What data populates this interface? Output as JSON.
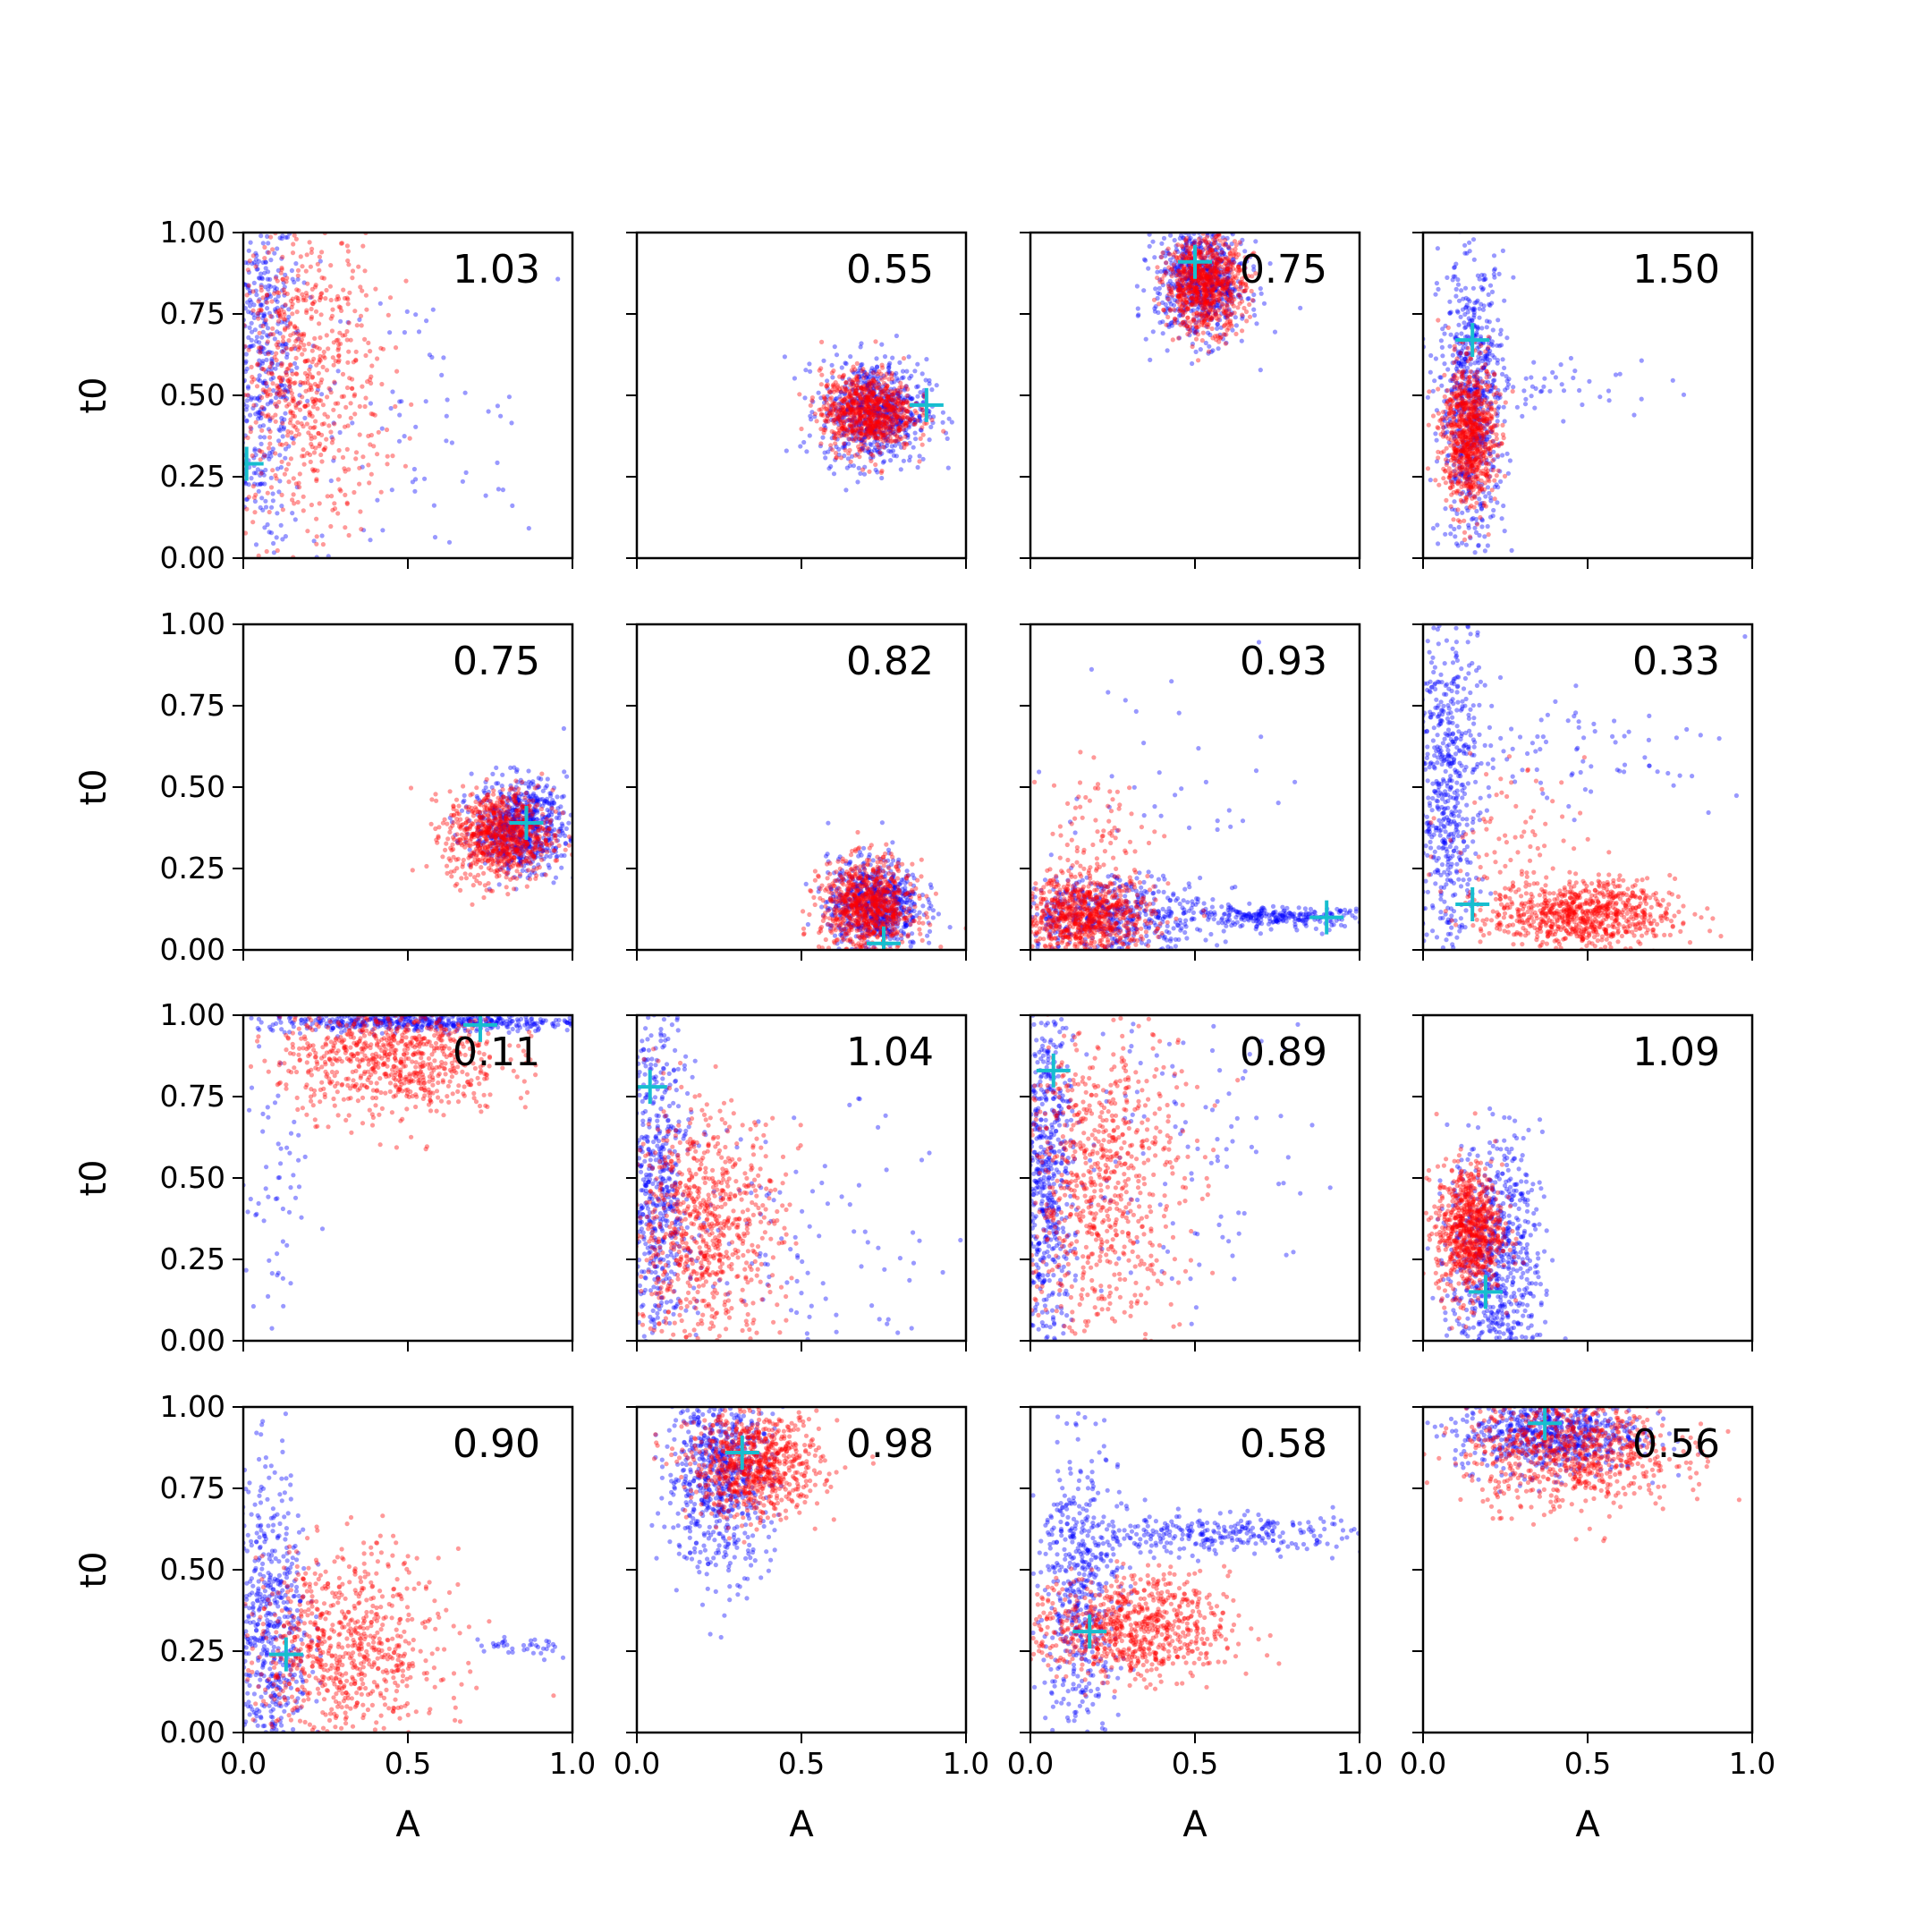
{
  "chart_data": {
    "type": "scatter",
    "layout": "4x4 grid of scatter subplots, shared axes",
    "xlabel": "A",
    "ylabel": "t0",
    "xlim": [
      0,
      1
    ],
    "ylim": [
      0,
      1
    ],
    "xtick_labels": [
      "0.0",
      "0.5",
      "1.0"
    ],
    "ytick_labels": [
      "0.00",
      "0.25",
      "0.50",
      "0.75",
      "1.00"
    ],
    "colors": {
      "series_a": "#0000ff",
      "series_b": "#ff0000",
      "marker": "#17becf"
    },
    "point_alpha": 0.4,
    "panels": [
      {
        "value": "1.03",
        "marker": [
          0.01,
          0.29
        ],
        "blue": [
          {
            "cx": 0.06,
            "cy": 0.6,
            "sx": 0.06,
            "sy": 0.3,
            "n": 500
          },
          {
            "cx": 0.45,
            "cy": 0.35,
            "sx": 0.25,
            "sy": 0.25,
            "n": 90
          }
        ],
        "red": [
          {
            "cx": 0.18,
            "cy": 0.55,
            "sx": 0.12,
            "sy": 0.25,
            "n": 700
          }
        ]
      },
      {
        "value": "0.55",
        "marker": [
          0.88,
          0.47
        ],
        "blue": [
          {
            "cx": 0.72,
            "cy": 0.45,
            "sx": 0.08,
            "sy": 0.08,
            "n": 700
          }
        ],
        "red": [
          {
            "cx": 0.7,
            "cy": 0.45,
            "sx": 0.07,
            "sy": 0.06,
            "n": 800
          }
        ]
      },
      {
        "value": "0.75",
        "marker": [
          0.5,
          0.91
        ],
        "blue": [
          {
            "cx": 0.52,
            "cy": 0.85,
            "sx": 0.07,
            "sy": 0.09,
            "n": 700
          }
        ],
        "red": [
          {
            "cx": 0.53,
            "cy": 0.84,
            "sx": 0.06,
            "sy": 0.07,
            "n": 800
          }
        ]
      },
      {
        "value": "1.50",
        "marker": [
          0.15,
          0.67
        ],
        "blue": [
          {
            "cx": 0.15,
            "cy": 0.48,
            "sx": 0.05,
            "sy": 0.22,
            "n": 700
          },
          {
            "cx": 0.4,
            "cy": 0.53,
            "sx": 0.18,
            "sy": 0.05,
            "n": 50
          }
        ],
        "red": [
          {
            "cx": 0.14,
            "cy": 0.38,
            "sx": 0.04,
            "sy": 0.11,
            "n": 800
          }
        ]
      },
      {
        "value": "0.75",
        "marker": [
          0.86,
          0.39
        ],
        "blue": [
          {
            "cx": 0.84,
            "cy": 0.38,
            "sx": 0.07,
            "sy": 0.07,
            "n": 700
          }
        ],
        "red": [
          {
            "cx": 0.78,
            "cy": 0.35,
            "sx": 0.08,
            "sy": 0.07,
            "n": 800
          }
        ]
      },
      {
        "value": "0.82",
        "marker": [
          0.75,
          0.02
        ],
        "blue": [
          {
            "cx": 0.72,
            "cy": 0.14,
            "sx": 0.07,
            "sy": 0.07,
            "n": 700
          }
        ],
        "red": [
          {
            "cx": 0.7,
            "cy": 0.13,
            "sx": 0.07,
            "sy": 0.07,
            "n": 800
          }
        ]
      },
      {
        "value": "0.93",
        "marker": [
          0.9,
          0.1
        ],
        "blue": [
          {
            "cx": 0.25,
            "cy": 0.11,
            "sx": 0.15,
            "sy": 0.06,
            "n": 500
          },
          {
            "cx": 0.75,
            "cy": 0.1,
            "sx": 0.15,
            "sy": 0.015,
            "n": 250
          },
          {
            "cx": 0.3,
            "cy": 0.5,
            "sx": 0.3,
            "sy": 0.25,
            "n": 60
          }
        ],
        "red": [
          {
            "cx": 0.17,
            "cy": 0.1,
            "sx": 0.1,
            "sy": 0.06,
            "n": 800
          },
          {
            "cx": 0.2,
            "cy": 0.35,
            "sx": 0.1,
            "sy": 0.1,
            "n": 80
          }
        ]
      },
      {
        "value": "0.33",
        "marker": [
          0.15,
          0.14
        ],
        "blue": [
          {
            "cx": 0.07,
            "cy": 0.5,
            "sx": 0.05,
            "sy": 0.28,
            "n": 600
          },
          {
            "cx": 0.5,
            "cy": 0.62,
            "sx": 0.25,
            "sy": 0.08,
            "n": 80
          }
        ],
        "red": [
          {
            "cx": 0.48,
            "cy": 0.11,
            "sx": 0.14,
            "sy": 0.05,
            "n": 800
          },
          {
            "cx": 0.25,
            "cy": 0.35,
            "sx": 0.12,
            "sy": 0.12,
            "n": 80
          }
        ]
      },
      {
        "value": "0.11",
        "marker": [
          0.72,
          0.97
        ],
        "blue": [
          {
            "cx": 0.55,
            "cy": 0.98,
            "sx": 0.25,
            "sy": 0.015,
            "n": 500
          },
          {
            "cx": 0.1,
            "cy": 0.45,
            "sx": 0.05,
            "sy": 0.25,
            "n": 60
          }
        ],
        "red": [
          {
            "cx": 0.45,
            "cy": 0.87,
            "sx": 0.17,
            "sy": 0.09,
            "n": 800
          }
        ]
      },
      {
        "value": "1.04",
        "marker": [
          0.04,
          0.78
        ],
        "blue": [
          {
            "cx": 0.06,
            "cy": 0.45,
            "sx": 0.05,
            "sy": 0.3,
            "n": 600
          },
          {
            "cx": 0.5,
            "cy": 0.3,
            "sx": 0.25,
            "sy": 0.2,
            "n": 120
          }
        ],
        "red": [
          {
            "cx": 0.2,
            "cy": 0.35,
            "sx": 0.12,
            "sy": 0.18,
            "n": 800
          }
        ]
      },
      {
        "value": "0.89",
        "marker": [
          0.07,
          0.83
        ],
        "blue": [
          {
            "cx": 0.05,
            "cy": 0.5,
            "sx": 0.04,
            "sy": 0.3,
            "n": 600
          },
          {
            "cx": 0.45,
            "cy": 0.55,
            "sx": 0.25,
            "sy": 0.25,
            "n": 130
          }
        ],
        "red": [
          {
            "cx": 0.2,
            "cy": 0.5,
            "sx": 0.13,
            "sy": 0.25,
            "n": 800
          }
        ]
      },
      {
        "value": "1.09",
        "marker": [
          0.19,
          0.15
        ],
        "blue": [
          {
            "cx": 0.22,
            "cy": 0.25,
            "sx": 0.07,
            "sy": 0.18,
            "n": 700
          }
        ],
        "red": [
          {
            "cx": 0.14,
            "cy": 0.34,
            "sx": 0.05,
            "sy": 0.1,
            "n": 800
          }
        ]
      },
      {
        "value": "0.90",
        "marker": [
          0.13,
          0.24
        ],
        "blue": [
          {
            "cx": 0.08,
            "cy": 0.3,
            "sx": 0.06,
            "sy": 0.25,
            "n": 600
          },
          {
            "cx": 0.85,
            "cy": 0.26,
            "sx": 0.08,
            "sy": 0.02,
            "n": 40
          }
        ],
        "red": [
          {
            "cx": 0.3,
            "cy": 0.25,
            "sx": 0.15,
            "sy": 0.15,
            "n": 800
          }
        ]
      },
      {
        "value": "0.98",
        "marker": [
          0.32,
          0.86
        ],
        "blue": [
          {
            "cx": 0.25,
            "cy": 0.8,
            "sx": 0.08,
            "sy": 0.15,
            "n": 700
          }
        ],
        "red": [
          {
            "cx": 0.36,
            "cy": 0.82,
            "sx": 0.1,
            "sy": 0.08,
            "n": 800
          }
        ]
      },
      {
        "value": "0.58",
        "marker": [
          0.18,
          0.31
        ],
        "blue": [
          {
            "cx": 0.15,
            "cy": 0.45,
            "sx": 0.06,
            "sy": 0.22,
            "n": 500
          },
          {
            "cx": 0.55,
            "cy": 0.61,
            "sx": 0.25,
            "sy": 0.03,
            "n": 300
          }
        ],
        "red": [
          {
            "cx": 0.3,
            "cy": 0.32,
            "sx": 0.15,
            "sy": 0.08,
            "n": 800
          }
        ]
      },
      {
        "value": "0.56",
        "marker": [
          0.37,
          0.95
        ],
        "blue": [
          {
            "cx": 0.38,
            "cy": 0.92,
            "sx": 0.14,
            "sy": 0.06,
            "n": 700
          }
        ],
        "red": [
          {
            "cx": 0.45,
            "cy": 0.87,
            "sx": 0.16,
            "sy": 0.09,
            "n": 800
          }
        ]
      }
    ]
  }
}
